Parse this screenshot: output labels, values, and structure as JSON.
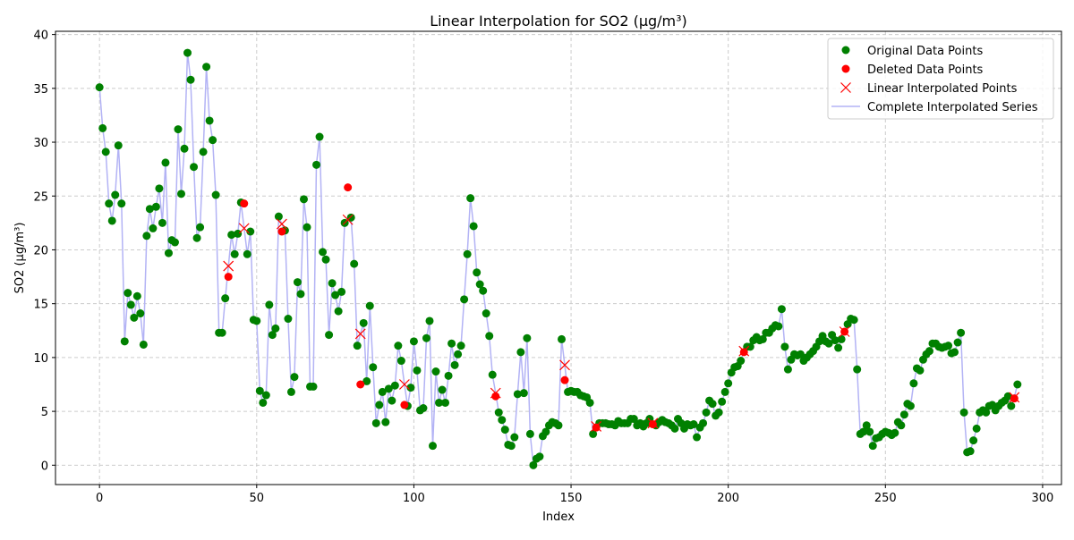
{
  "chart_data": {
    "type": "line",
    "title": "Linear Interpolation for SO2 (µg/m³)",
    "xlabel": "Index",
    "ylabel": "SO2 (µg/m³)",
    "xlim": [
      -14,
      306
    ],
    "ylim": [
      -1.8,
      40.3
    ],
    "xticks": [
      0,
      50,
      100,
      150,
      200,
      250,
      300
    ],
    "yticks": [
      0,
      5,
      10,
      15,
      20,
      25,
      30,
      35,
      40
    ],
    "grid": true,
    "legend_position": "top-right",
    "colors": {
      "original": "#008000",
      "deleted": "#ff0000",
      "interpolated_marker": "#ff0000",
      "series_line": "#b3b3f5",
      "grid": "#cccccc"
    },
    "series": [
      {
        "name": "Original Data Points",
        "marker": "circle",
        "color": "#008000"
      },
      {
        "name": "Deleted Data Points",
        "marker": "circle",
        "color": "#ff0000"
      },
      {
        "name": "Linear Interpolated Points",
        "marker": "x",
        "color": "#ff0000"
      },
      {
        "name": "Complete Interpolated Series",
        "marker": "line",
        "color": "#b3b3f5"
      }
    ],
    "complete_series": [
      35.1,
      31.3,
      29.1,
      24.3,
      22.7,
      25.1,
      29.7,
      24.3,
      11.5,
      16.0,
      14.9,
      13.7,
      15.7,
      14.1,
      11.2,
      21.3,
      23.8,
      22.0,
      24.0,
      25.7,
      22.5,
      28.1,
      19.7,
      20.9,
      20.7,
      31.2,
      25.2,
      29.4,
      38.3,
      35.8,
      27.7,
      21.1,
      22.1,
      29.1,
      37.0,
      32.0,
      30.2,
      25.1,
      12.3,
      12.3,
      15.5,
      18.5,
      21.4,
      19.6,
      21.5,
      24.4,
      22.0,
      19.6,
      21.7,
      13.5,
      13.4,
      6.9,
      5.8,
      6.5,
      14.9,
      12.1,
      12.7,
      23.1,
      22.4,
      21.8,
      13.6,
      6.8,
      8.2,
      17.0,
      15.9,
      24.7,
      22.1,
      7.3,
      7.3,
      27.9,
      30.5,
      19.8,
      19.1,
      12.1,
      16.9,
      15.8,
      14.3,
      16.1,
      22.5,
      22.8,
      23.0,
      18.7,
      11.1,
      12.2,
      13.2,
      7.8,
      14.8,
      9.1,
      3.9,
      5.6,
      6.8,
      4.0,
      7.1,
      6.0,
      7.4,
      11.1,
      9.7,
      7.5,
      5.5,
      7.2,
      11.5,
      8.8,
      5.1,
      5.3,
      11.8,
      13.4,
      1.8,
      8.7,
      5.8,
      7.0,
      5.8,
      8.3,
      11.3,
      9.3,
      10.3,
      11.1,
      15.4,
      19.6,
      24.8,
      22.2,
      17.9,
      16.8,
      16.2,
      14.1,
      12.0,
      8.4,
      6.7,
      4.9,
      4.2,
      3.3,
      1.9,
      1.8,
      2.6,
      6.6,
      10.5,
      6.7,
      11.8,
      2.9,
      0.0,
      0.6,
      0.8,
      2.7,
      3.1,
      3.7,
      4.0,
      3.9,
      3.7,
      11.7,
      9.3,
      6.8,
      6.9,
      6.8,
      6.8,
      6.5,
      6.4,
      6.3,
      5.8,
      2.9,
      3.6,
      3.9,
      3.9,
      3.9,
      3.8,
      3.8,
      3.7,
      4.1,
      3.9,
      3.9,
      3.9,
      4.3,
      4.3,
      3.7,
      3.9,
      3.6,
      3.9,
      4.3,
      4.0,
      3.7,
      4.0,
      4.2,
      4.0,
      3.9,
      3.7,
      3.4,
      4.3,
      3.9,
      3.4,
      3.8,
      3.7,
      3.8,
      2.6,
      3.5,
      3.9,
      4.9,
      6.0,
      5.7,
      4.6,
      4.9,
      5.9,
      6.8,
      7.6,
      8.6,
      9.1,
      9.2,
      9.7,
      10.6,
      11.0,
      11.0,
      11.6,
      11.9,
      11.6,
      11.7,
      12.3,
      12.3,
      12.7,
      13.0,
      12.9,
      14.5,
      11.0,
      8.9,
      9.8,
      10.3,
      10.2,
      10.3,
      9.7,
      10.0,
      10.3,
      10.6,
      11.0,
      11.5,
      12.0,
      11.5,
      11.3,
      12.1,
      11.6,
      10.9,
      11.7,
      12.4,
      13.1,
      13.6,
      13.5,
      8.9,
      2.9,
      3.1,
      3.7,
      3.1,
      1.8,
      2.5,
      2.6,
      2.9,
      3.1,
      3.0,
      2.8,
      3.0,
      4.0,
      3.7,
      4.7,
      5.7,
      5.5,
      7.6,
      9.0,
      8.8,
      9.8,
      10.3,
      10.6,
      11.3,
      11.3,
      11.0,
      10.9,
      11.0,
      11.1,
      10.4,
      10.5,
      11.4,
      12.3,
      4.9,
      1.2,
      1.3,
      2.3,
      3.4,
      4.9,
      5.1,
      4.9,
      5.5,
      5.6,
      5.1,
      5.5,
      5.8,
      6.0,
      6.4,
      5.5,
      6.3,
      7.5
    ],
    "deleted_indices": [
      41,
      46,
      58,
      79,
      83,
      97,
      126,
      148,
      158,
      176,
      205,
      237,
      291
    ],
    "deleted_values": [
      17.5,
      24.3,
      21.7,
      25.8,
      7.5,
      5.6,
      6.4,
      7.9,
      3.5,
      3.8,
      10.5,
      12.4,
      6.2
    ],
    "interpolated_values": [
      18.5,
      22.0,
      22.4,
      22.8,
      12.2,
      7.5,
      6.7,
      9.3,
      3.6,
      3.9,
      10.6,
      12.4,
      6.3
    ]
  }
}
